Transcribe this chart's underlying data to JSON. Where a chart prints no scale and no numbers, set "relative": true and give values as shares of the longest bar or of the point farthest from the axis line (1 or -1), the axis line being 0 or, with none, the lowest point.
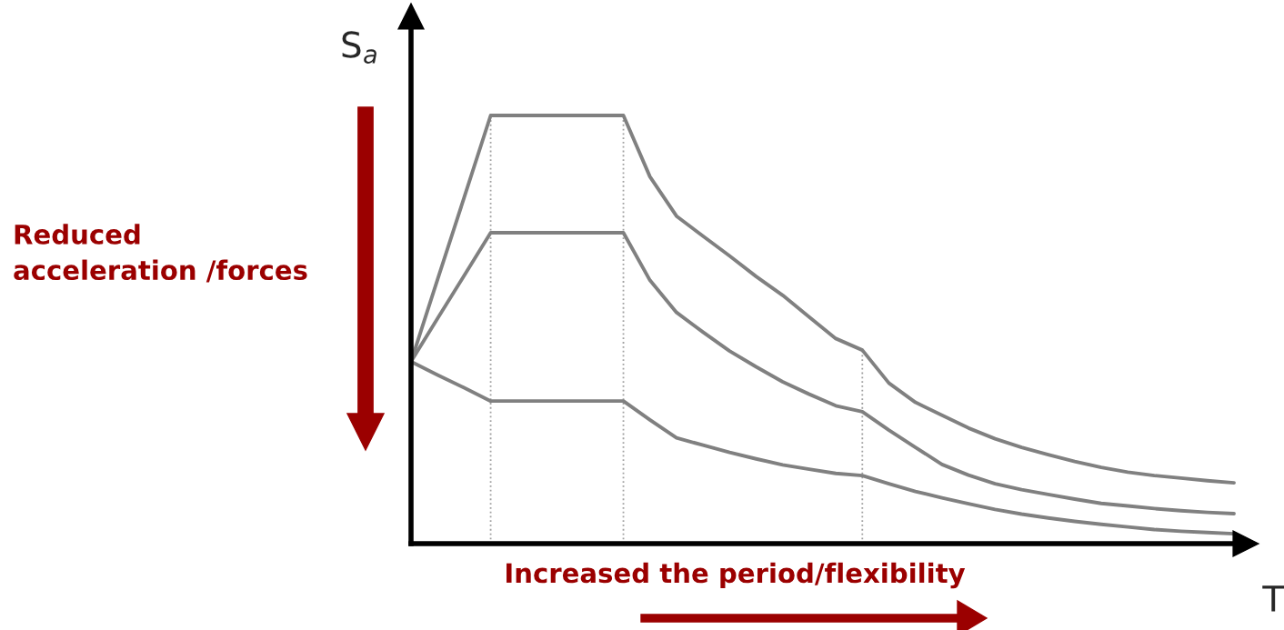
{
  "chart_data": {
    "type": "line",
    "relative": true,
    "xlabel": "T",
    "ylabel": "S$_{a}$",
    "categories": [
      null,
      null,
      null,
      null,
      null,
      null,
      null,
      null,
      null,
      null,
      null,
      null,
      null,
      null,
      null,
      null,
      null,
      null,
      null,
      null,
      null,
      null,
      null,
      null,
      null,
      null,
      null,
      null,
      null,
      null,
      null,
      null
    ],
    "marker": "none",
    "line_style": "solid",
    "series": [
      {
        "color": "#808080",
        "values": [
          0.425,
          0.617,
          0.808,
          1,
          1,
          1,
          1,
          1,
          1,
          0.857,
          0.765,
          0.718,
          0.672,
          0.624,
          0.58,
          0.529,
          0.479,
          0.452,
          0.375,
          0.33,
          0.3,
          0.27,
          0.245,
          0.225,
          0.208,
          0.192,
          0.178,
          0.167,
          0.159,
          0.153,
          0.147,
          0.142
        ]
      },
      {
        "color": "#808080",
        "values": [
          0.425,
          0.526,
          0.626,
          0.726,
          0.726,
          0.726,
          0.726,
          0.726,
          0.726,
          0.615,
          0.54,
          0.494,
          0.45,
          0.413,
          0.378,
          0.349,
          0.322,
          0.308,
          0.265,
          0.225,
          0.185,
          0.16,
          0.14,
          0.126,
          0.115,
          0.104,
          0.094,
          0.088,
          0.082,
          0.077,
          0.073,
          0.07
        ]
      },
      {
        "color": "#808080",
        "values": [
          0.425,
          0.394,
          0.364,
          0.333,
          0.333,
          0.333,
          0.333,
          0.333,
          0.333,
          0.289,
          0.247,
          0.23,
          0.213,
          0.198,
          0.184,
          0.174,
          0.164,
          0.159,
          0.14,
          0.122,
          0.107,
          0.093,
          0.08,
          0.069,
          0.06,
          0.052,
          0.045,
          0.039,
          0.033,
          0.029,
          0.026,
          0.023
        ]
      }
    ],
    "annotations": [
      "Reduced\nacceleration /forces",
      "Increased the period/flexibility"
    ]
  }
}
